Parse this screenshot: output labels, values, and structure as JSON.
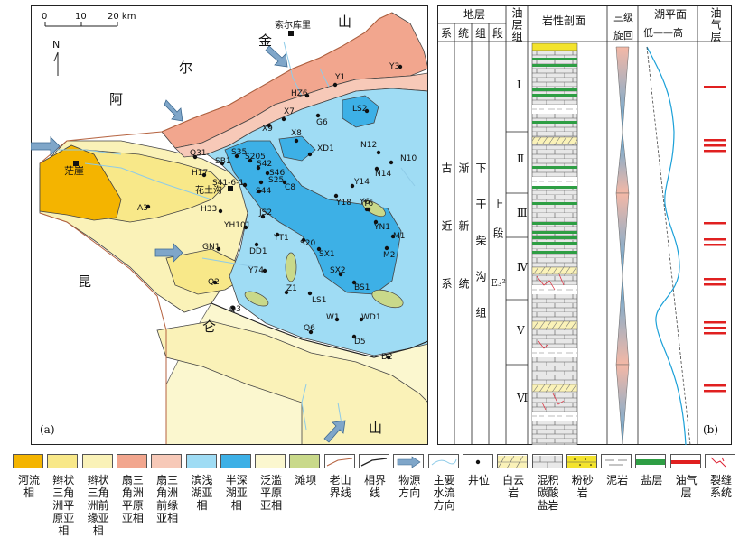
{
  "map": {
    "scale": {
      "ticks": [
        "0",
        "10",
        "20 km"
      ]
    },
    "north": "N",
    "panel_label": "(a)",
    "regions": {
      "kunlun_1": "昆",
      "kunlun_2": "仑",
      "shan_bottom": "山",
      "er": "尔",
      "a": "阿",
      "jin": "金",
      "shan_top": "山"
    },
    "cities": [
      {
        "id": "suoerkuli",
        "label": "索尔库里"
      },
      {
        "id": "mangya",
        "label": "茫崖"
      },
      {
        "id": "huatugou",
        "label": "花土沟"
      }
    ],
    "wells": [
      "Y3",
      "Y1",
      "HZ6",
      "LS2",
      "G6",
      "X7",
      "X9",
      "X8",
      "XD1",
      "N12",
      "N10",
      "N14",
      "Q31",
      "SB1",
      "S35",
      "S205",
      "S42",
      "S46",
      "S25",
      "S41-6-1",
      "S44",
      "C8",
      "Y14",
      "Y18",
      "Y6",
      "YN1",
      "H17",
      "A3",
      "H33",
      "JS2",
      "YH101",
      "YT1",
      "S20",
      "M1",
      "M2",
      "SX1",
      "GN1",
      "DD1",
      "Y74",
      "SX2",
      "BS1",
      "Q2",
      "Z1",
      "Q3",
      "LS1",
      "W1",
      "WD1",
      "Q6",
      "D5",
      "D2",
      "Y6"
    ]
  },
  "column": {
    "panel_label": "(b)",
    "header": {
      "strata": "地层",
      "system": "系",
      "series": "统",
      "group": "组",
      "member": "段",
      "oil_group": "油层组",
      "lithology": "岩性剖面",
      "cycle": "三级旋回",
      "lake_level": "湖平面",
      "lake_low": "低——高",
      "oil_layer": "油气层"
    },
    "system_value": "古近系",
    "series_value": "渐新统",
    "group_value": "下干柴沟组",
    "member_value": "上段",
    "member_code": "E₃²",
    "oil_groups": [
      "Ⅰ",
      "Ⅱ",
      "Ⅲ",
      "Ⅳ",
      "Ⅴ",
      "Ⅵ"
    ]
  },
  "legend": [
    {
      "id": "fluvial",
      "label": "河流相",
      "color": "#f4b400"
    },
    {
      "id": "braided-plain",
      "label": "辫状三角洲平原亚相",
      "color": "#f8e889"
    },
    {
      "id": "braided-front",
      "label": "辫状三角洲前缘亚相",
      "color": "#faf2b8"
    },
    {
      "id": "fan-plain",
      "label": "扇三角洲平原亚相",
      "color": "#f2a68e"
    },
    {
      "id": "fan-front",
      "label": "扇三角洲前缘亚相",
      "color": "#f7c9b8"
    },
    {
      "id": "shore-lake",
      "label": "滨浅湖亚相",
      "color": "#9fdcf4"
    },
    {
      "id": "semi-deep",
      "label": "半深湖亚相",
      "color": "#3db0e6"
    },
    {
      "id": "flood-plain",
      "label": "泛滥平原亚相",
      "color": "#fbf7cf"
    },
    {
      "id": "beach-bar",
      "label": "滩坝",
      "color": "#c9d98a"
    },
    {
      "id": "old-mountain",
      "label": "老山界线"
    },
    {
      "id": "facies-line",
      "label": "相界线"
    },
    {
      "id": "source",
      "label": "物源方向"
    },
    {
      "id": "waterflow",
      "label": "主要水流方向"
    },
    {
      "id": "well",
      "label": "井位"
    },
    {
      "id": "dolomite",
      "label": "白云岩"
    },
    {
      "id": "mixed",
      "label": "混积碳酸盐岩"
    },
    {
      "id": "siltstone",
      "label": "粉砂岩"
    },
    {
      "id": "mudstone",
      "label": "泥岩"
    },
    {
      "id": "salt",
      "label": "盐层"
    },
    {
      "id": "oil-layer",
      "label": "油气层"
    },
    {
      "id": "fracture",
      "label": "裂缝系统"
    }
  ]
}
